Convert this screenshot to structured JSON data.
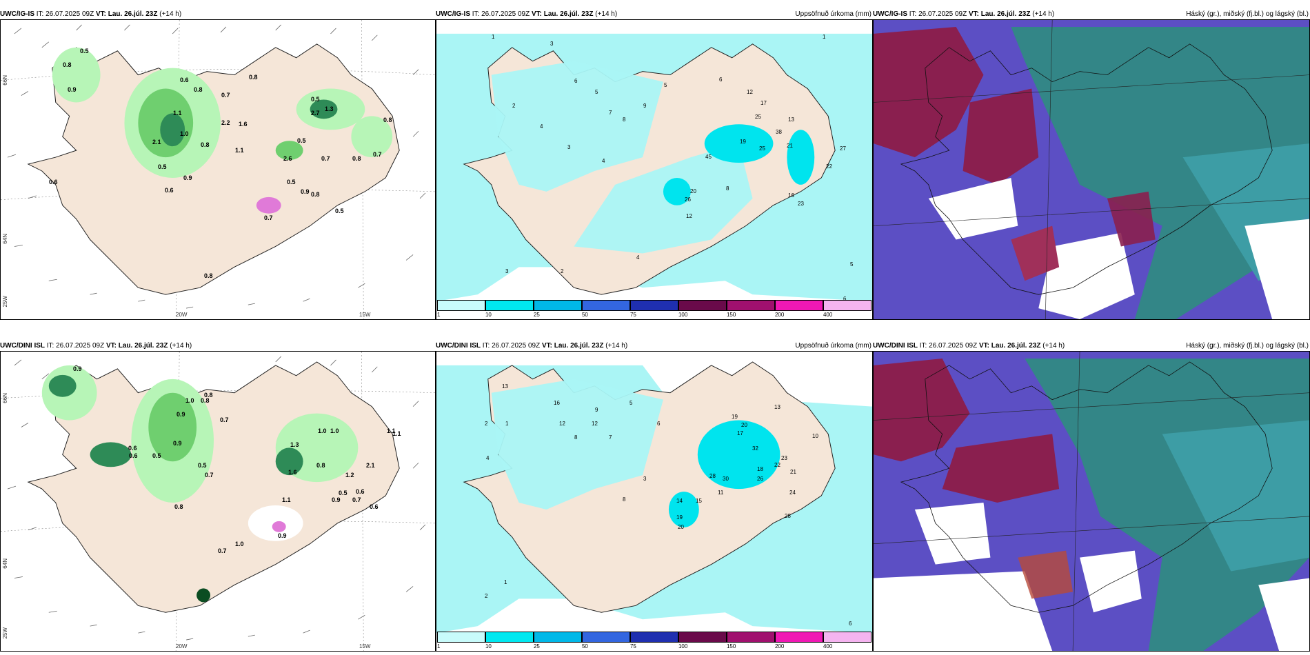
{
  "colors": {
    "land": "#f5e6d8",
    "sea_white": "#ffffff",
    "precip_light": "#b7f5b7",
    "precip_mid": "#6fcf6f",
    "precip_dark": "#2e8b57",
    "precip_darkest": "#0b4d22",
    "accum_base": "#aaf5f5",
    "accum_mid": "#00e4ee",
    "cloud_high": "#2b8f7c",
    "cloud_mid": "#8a1f4f",
    "cloud_low": "#5c4fc4",
    "cloud_mix": "#3ea0a8"
  },
  "colorbar": {
    "labels": [
      "1",
      "10",
      "25",
      "50",
      "75",
      "100",
      "150",
      "200",
      "400"
    ],
    "colors": [
      "#c8fbfb",
      "#00e8f0",
      "#00b8e8",
      "#3366e0",
      "#1f2fb0",
      "#6a0a4a",
      "#a0106e",
      "#f018b4",
      "#f5b4f0"
    ]
  },
  "rows": [
    {
      "model": "UWC/IG-IS",
      "it_label": "IT:",
      "it_value": "26.07.2025 09Z",
      "vt_label": "VT:",
      "vt_value": "Lau. 26.júl. 23Z",
      "lead": "(+14 h)",
      "accum_title": "Uppsöfnuð úrkoma (mm)",
      "cloud_title": "Háský (gr.), miðský (fj.bl.) og lágský (bl.)",
      "lat_ticks": [
        "66N",
        "64N",
        "65N"
      ],
      "lon_ticks": [
        "20W",
        "15W",
        "25W"
      ],
      "precip_values": [
        "0.5",
        "0.8",
        "0.9",
        "0.6",
        "0.8",
        "1.0",
        "0.7",
        "1.1",
        "2.2",
        "1.6",
        "0.5",
        "0.8",
        "2.7",
        "1.3",
        "0.9",
        "1.1",
        "2.1",
        "0.8",
        "0.5",
        "0.7",
        "2.6",
        "0.5",
        "0.6",
        "0.5",
        "0.9",
        "0.6",
        "0.8",
        "0.7",
        "0.8",
        "0.5",
        "0.8",
        "0.7",
        "0.8"
      ],
      "accum_values": [
        "1",
        "3",
        "2",
        "4",
        "6",
        "5",
        "3",
        "7",
        "8",
        "9",
        "4",
        "5",
        "6",
        "12",
        "25",
        "17",
        "13",
        "38",
        "21",
        "45",
        "25",
        "19",
        "27",
        "22",
        "23",
        "16",
        "20",
        "26",
        "12",
        "8",
        "4",
        "3",
        "2",
        "1",
        "6",
        "5"
      ]
    },
    {
      "model": "UWC/DINI ISL",
      "it_label": "IT:",
      "it_value": "26.07.2025 09Z",
      "vt_label": "VT:",
      "vt_value": "Lau. 26.júl. 23Z",
      "lead": "(+14 h)",
      "accum_title": "Uppsöfnuð úrkoma (mm)",
      "cloud_title": "Háský (gr.), miðský (fj.bl.) og lágský (bl.)",
      "lat_ticks": [
        "66N",
        "64N",
        "65N"
      ],
      "lon_ticks": [
        "20W",
        "15W",
        "25W"
      ],
      "precip_values": [
        "0.9",
        "1.0",
        "0.8",
        "0.9",
        "0.6",
        "1.1",
        "0.7",
        "0.5",
        "1.3",
        "1.0",
        "0.8",
        "2.1",
        "1.6",
        "0.9",
        "0.6",
        "1.2",
        "0.5",
        "0.7",
        "0.8",
        "1.1",
        "0.9",
        "0.6",
        "1.0",
        "0.7",
        "0.5",
        "1.0",
        "0.9",
        "0.6",
        "0.8",
        "0.7",
        "1.1"
      ],
      "accum_values": [
        "1",
        "2",
        "4",
        "13",
        "16",
        "12",
        "7",
        "5",
        "3",
        "6",
        "9",
        "8",
        "19",
        "20",
        "17",
        "13",
        "10",
        "32",
        "23",
        "22",
        "21",
        "28",
        "30",
        "18",
        "26",
        "14",
        "11",
        "15",
        "24",
        "19",
        "28",
        "20",
        "12",
        "8",
        "6",
        "2",
        "1"
      ]
    }
  ]
}
